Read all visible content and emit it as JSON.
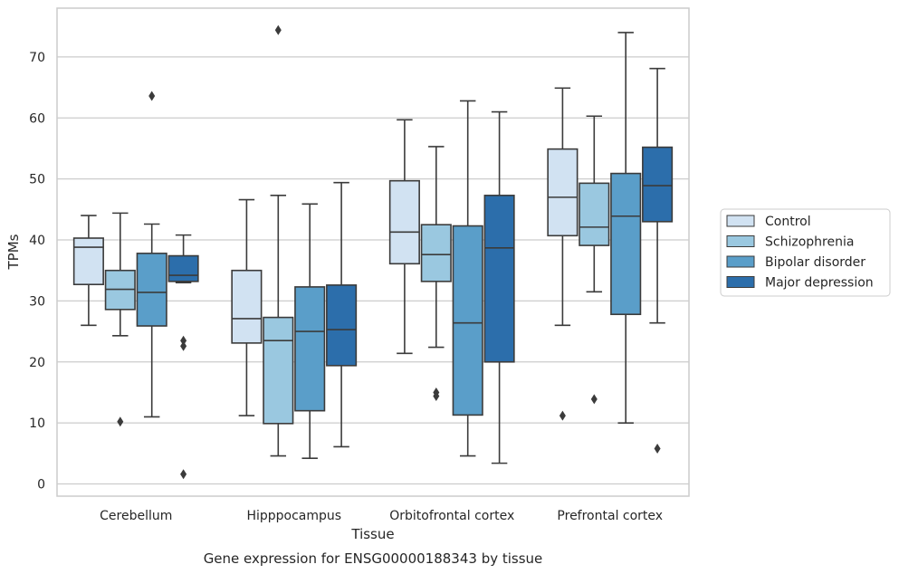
{
  "chart_data": {
    "type": "box",
    "title": "",
    "caption": "Gene expression for ENSG00000188343 by tissue",
    "xlabel": "Tissue",
    "ylabel": "TPMs",
    "ylim": [
      -2,
      78
    ],
    "yticks": [
      0,
      10,
      20,
      30,
      40,
      50,
      60,
      70
    ],
    "grid": "horizontal",
    "legend_position": "right",
    "categories": [
      "Cerebellum",
      "Hipppocampus",
      "Orbitofrontal cortex",
      "Prefrontal cortex"
    ],
    "series": [
      {
        "name": "Control",
        "color": "#d1e2f2",
        "boxes": [
          {
            "whisker_low": 26,
            "q1": 32.7,
            "median": 38.8,
            "q3": 40.3,
            "whisker_high": 44,
            "outliers": []
          },
          {
            "whisker_low": 11.2,
            "q1": 23.1,
            "median": 27.1,
            "q3": 35,
            "whisker_high": 46.6,
            "outliers": []
          },
          {
            "whisker_low": 21.4,
            "q1": 36.1,
            "median": 41.3,
            "q3": 49.7,
            "whisker_high": 59.7,
            "outliers": []
          },
          {
            "whisker_low": 26,
            "q1": 40.7,
            "median": 47,
            "q3": 54.9,
            "whisker_high": 64.9,
            "outliers": [
              11.2
            ]
          }
        ]
      },
      {
        "name": "Schizophrenia",
        "color": "#9ac8e0",
        "boxes": [
          {
            "whisker_low": 24.3,
            "q1": 28.6,
            "median": 31.9,
            "q3": 35,
            "whisker_high": 44.4,
            "outliers": [
              10.2
            ]
          },
          {
            "whisker_low": 4.6,
            "q1": 9.9,
            "median": 23.5,
            "q3": 27.3,
            "whisker_high": 47.3,
            "outliers": [
              74.4
            ]
          },
          {
            "whisker_low": 22.4,
            "q1": 33.2,
            "median": 37.6,
            "q3": 42.5,
            "whisker_high": 55.3,
            "outliers": [
              15,
              14.4
            ]
          },
          {
            "whisker_low": 31.5,
            "q1": 39.1,
            "median": 42.1,
            "q3": 49.3,
            "whisker_high": 60.3,
            "outliers": [
              13.9
            ]
          }
        ]
      },
      {
        "name": "Bipolar disorder",
        "color": "#5a9ec9",
        "boxes": [
          {
            "whisker_low": 11,
            "q1": 25.9,
            "median": 31.4,
            "q3": 37.8,
            "whisker_high": 42.6,
            "outliers": [
              63.6
            ]
          },
          {
            "whisker_low": 4.2,
            "q1": 12,
            "median": 25,
            "q3": 32.3,
            "whisker_high": 45.9,
            "outliers": []
          },
          {
            "whisker_low": 4.6,
            "q1": 11.3,
            "median": 26.4,
            "q3": 42.3,
            "whisker_high": 62.8,
            "outliers": []
          },
          {
            "whisker_low": 10,
            "q1": 27.8,
            "median": 43.9,
            "q3": 50.9,
            "whisker_high": 74,
            "outliers": []
          }
        ]
      },
      {
        "name": "Major depression",
        "color": "#2c6eab",
        "boxes": [
          {
            "whisker_low": 33,
            "q1": 33.2,
            "median": 34.2,
            "q3": 37.4,
            "whisker_high": 40.8,
            "outliers": [
              23.5,
              22.6,
              1.6
            ]
          },
          {
            "whisker_low": 6.1,
            "q1": 19.4,
            "median": 25.3,
            "q3": 32.6,
            "whisker_high": 49.4,
            "outliers": []
          },
          {
            "whisker_low": 3.4,
            "q1": 20,
            "median": 38.7,
            "q3": 47.3,
            "whisker_high": 61,
            "outliers": []
          },
          {
            "whisker_low": 26.4,
            "q1": 43,
            "median": 48.9,
            "q3": 55.2,
            "whisker_high": 68.1,
            "outliers": [
              5.8
            ]
          }
        ]
      }
    ]
  }
}
